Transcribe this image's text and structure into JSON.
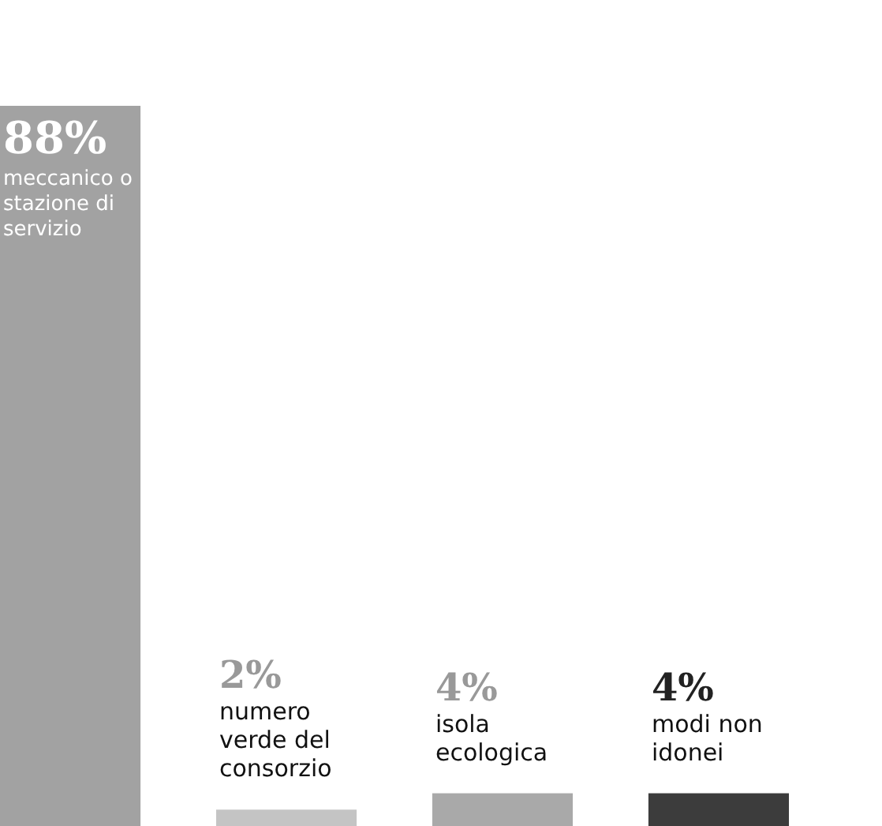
{
  "chart_data": {
    "type": "bar",
    "categories": [
      "meccanico o stazione di servizio",
      "numero verde del consorzio",
      "isola ecologica",
      "modi non idonei"
    ],
    "values": [
      88,
      2,
      4,
      4
    ],
    "value_labels": [
      "88%",
      "2%",
      "4%",
      "4%"
    ],
    "colors": [
      "#a2a2a2",
      "#c4c4c4",
      "#a9a9a9",
      "#3c3c3c"
    ]
  }
}
